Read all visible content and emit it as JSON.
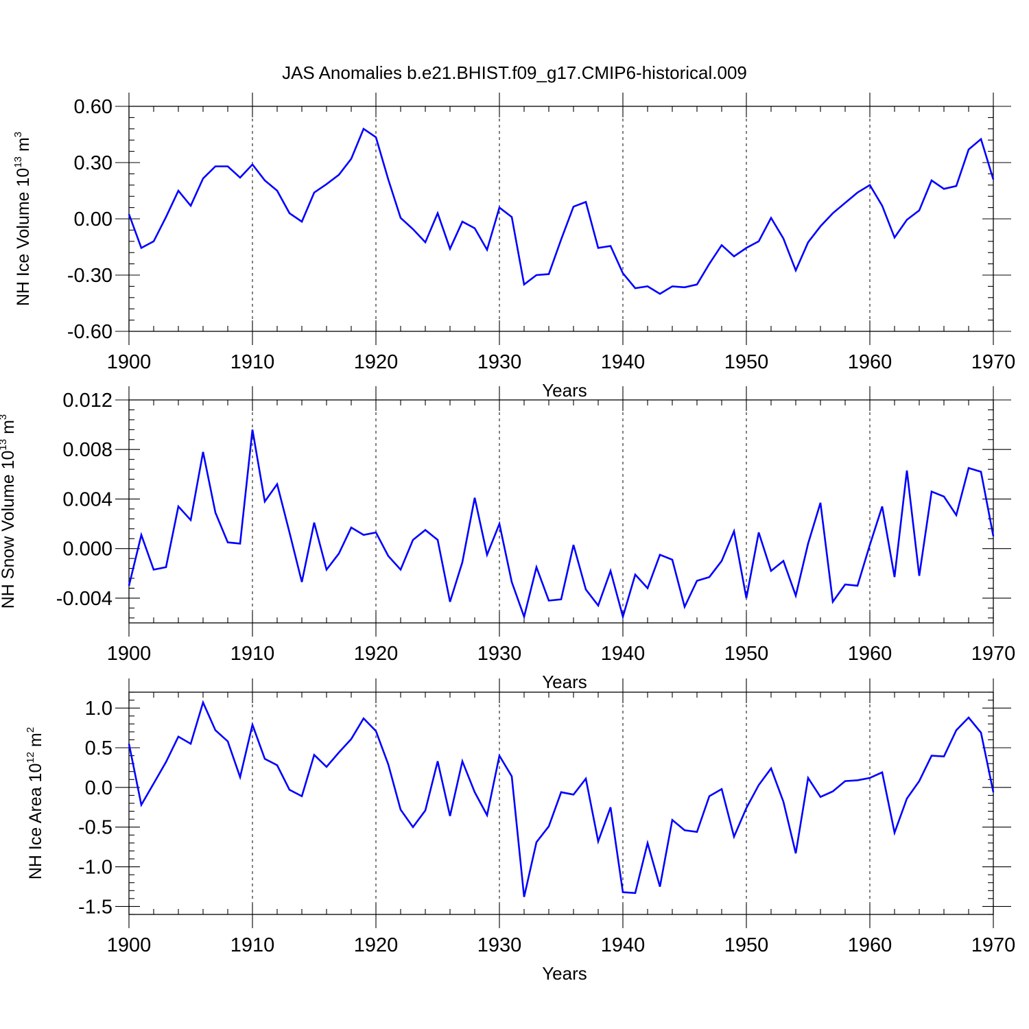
{
  "title": "JAS Anomalies b.e21.BHIST.f09_g17.CMIP6-historical.009",
  "colors": {
    "line": "#0000ff",
    "axis": "#000000"
  },
  "chart_data": [
    {
      "type": "line",
      "id": "ice-volume",
      "ylabel_main": "NH Ice Volume 10",
      "ylabel_exp": "13",
      "ylabel_unit": " m",
      "ylabel_unit_exp": "3",
      "xlabel": "Years",
      "xlim": [
        1900,
        1970
      ],
      "ylim": [
        -0.6,
        0.6
      ],
      "xticks": [
        1900,
        1910,
        1920,
        1930,
        1940,
        1950,
        1960,
        1970
      ],
      "xtick_labels": [
        "1900",
        "1910",
        "1920",
        "1930",
        "1940",
        "1950",
        "1960",
        "1970"
      ],
      "yticks": [
        -0.6,
        -0.3,
        0.0,
        0.3,
        0.6
      ],
      "ytick_labels": [
        "-0.60",
        "-0.30",
        "0.00",
        "0.30",
        "0.60"
      ],
      "grid_x": [
        1910,
        1920,
        1930,
        1940,
        1950,
        1960
      ],
      "x_start": 1900,
      "values": [
        0.025,
        -0.155,
        -0.12,
        0.01,
        0.15,
        0.07,
        0.215,
        0.28,
        0.28,
        0.22,
        0.29,
        0.205,
        0.15,
        0.03,
        -0.015,
        0.14,
        0.185,
        0.235,
        0.32,
        0.48,
        0.435,
        0.21,
        0.005,
        -0.055,
        -0.125,
        0.03,
        -0.16,
        -0.015,
        -0.05,
        -0.165,
        0.06,
        0.01,
        -0.35,
        -0.3,
        -0.295,
        -0.11,
        0.065,
        0.09,
        -0.155,
        -0.145,
        -0.29,
        -0.37,
        -0.36,
        -0.4,
        -0.36,
        -0.365,
        -0.35,
        -0.24,
        -0.14,
        -0.2,
        -0.155,
        -0.12,
        0.005,
        -0.105,
        -0.275,
        -0.125,
        -0.04,
        0.03,
        0.085,
        0.14,
        0.18,
        0.07,
        -0.1,
        -0.005,
        0.045,
        0.205,
        0.16,
        0.175,
        0.37,
        0.425,
        0.21
      ]
    },
    {
      "type": "line",
      "id": "snow-volume",
      "ylabel_main": "NH Snow Volume 10",
      "ylabel_exp": "13",
      "ylabel_unit": " m",
      "ylabel_unit_exp": "3",
      "xlabel": "Years",
      "xlim": [
        1900,
        1970
      ],
      "ylim": [
        -0.006,
        0.012
      ],
      "xticks": [
        1900,
        1910,
        1920,
        1930,
        1940,
        1950,
        1960,
        1970
      ],
      "xtick_labels": [
        "1900",
        "1910",
        "1920",
        "1930",
        "1940",
        "1950",
        "1960",
        "1970"
      ],
      "yticks": [
        -0.004,
        0.0,
        0.004,
        0.008,
        0.012
      ],
      "ytick_labels": [
        "-0.004",
        "0.000",
        "0.004",
        "0.008",
        "0.012"
      ],
      "grid_x": [
        1910,
        1920,
        1930,
        1940,
        1950,
        1960
      ],
      "x_start": 1900,
      "values": [
        -0.003,
        0.0011,
        -0.0017,
        -0.0015,
        0.0034,
        0.0023,
        0.0078,
        0.0029,
        0.0005,
        0.0004,
        0.0096,
        0.0038,
        0.0052,
        0.0013,
        -0.0027,
        0.0021,
        -0.0017,
        -0.0004,
        0.0017,
        0.0011,
        0.0013,
        -0.0006,
        -0.0017,
        0.0007,
        0.0015,
        0.0007,
        -0.0043,
        -0.0011,
        0.0041,
        -0.0005,
        0.002,
        -0.0027,
        -0.0055,
        -0.0015,
        -0.0042,
        -0.0041,
        0.0003,
        -0.0033,
        -0.0046,
        -0.0018,
        -0.0055,
        -0.0021,
        -0.0032,
        -0.0005,
        -0.0009,
        -0.0047,
        -0.0026,
        -0.0023,
        -0.001,
        0.0014,
        -0.004,
        0.0013,
        -0.0018,
        -0.001,
        -0.0038,
        0.0004,
        0.0037,
        -0.0043,
        -0.0029,
        -0.003,
        0.0003,
        0.0034,
        -0.0023,
        0.0063,
        -0.0022,
        0.0046,
        0.0042,
        0.0027,
        0.0065,
        0.0062,
        0.001
      ]
    },
    {
      "type": "line",
      "id": "ice-area",
      "ylabel_main": "NH Ice Area 10",
      "ylabel_exp": "12",
      "ylabel_unit": " m",
      "ylabel_unit_exp": "2",
      "xlabel": "Years",
      "xlim": [
        1900,
        1970
      ],
      "ylim": [
        -1.6,
        1.2
      ],
      "xticks": [
        1900,
        1910,
        1920,
        1930,
        1940,
        1950,
        1960,
        1970
      ],
      "xtick_labels": [
        "1900",
        "1910",
        "1920",
        "1930",
        "1940",
        "1950",
        "1960",
        "1970"
      ],
      "yticks": [
        -1.5,
        -1.0,
        -0.5,
        0.0,
        0.5,
        1.0
      ],
      "ytick_labels": [
        "-1.5",
        "-1.0",
        "-0.5",
        "0.0",
        "0.5",
        "1.0"
      ],
      "grid_x": [
        1910,
        1920,
        1930,
        1940,
        1950,
        1960
      ],
      "x_start": 1900,
      "values": [
        0.55,
        -0.22,
        0.05,
        0.32,
        0.64,
        0.55,
        1.07,
        0.72,
        0.58,
        0.13,
        0.79,
        0.36,
        0.28,
        -0.03,
        -0.11,
        0.41,
        0.26,
        0.44,
        0.61,
        0.87,
        0.71,
        0.29,
        -0.28,
        -0.5,
        -0.29,
        0.33,
        -0.36,
        0.33,
        -0.06,
        -0.35,
        0.4,
        0.14,
        -1.38,
        -0.69,
        -0.49,
        -0.06,
        -0.09,
        0.11,
        -0.68,
        -0.25,
        -1.32,
        -1.33,
        -0.7,
        -1.25,
        -0.41,
        -0.54,
        -0.56,
        -0.11,
        -0.02,
        -0.62,
        -0.26,
        0.03,
        0.24,
        -0.18,
        -0.83,
        0.12,
        -0.12,
        -0.05,
        0.08,
        0.09,
        0.12,
        0.19,
        -0.57,
        -0.14,
        0.08,
        0.4,
        0.39,
        0.72,
        0.88,
        0.69,
        -0.06
      ]
    }
  ]
}
